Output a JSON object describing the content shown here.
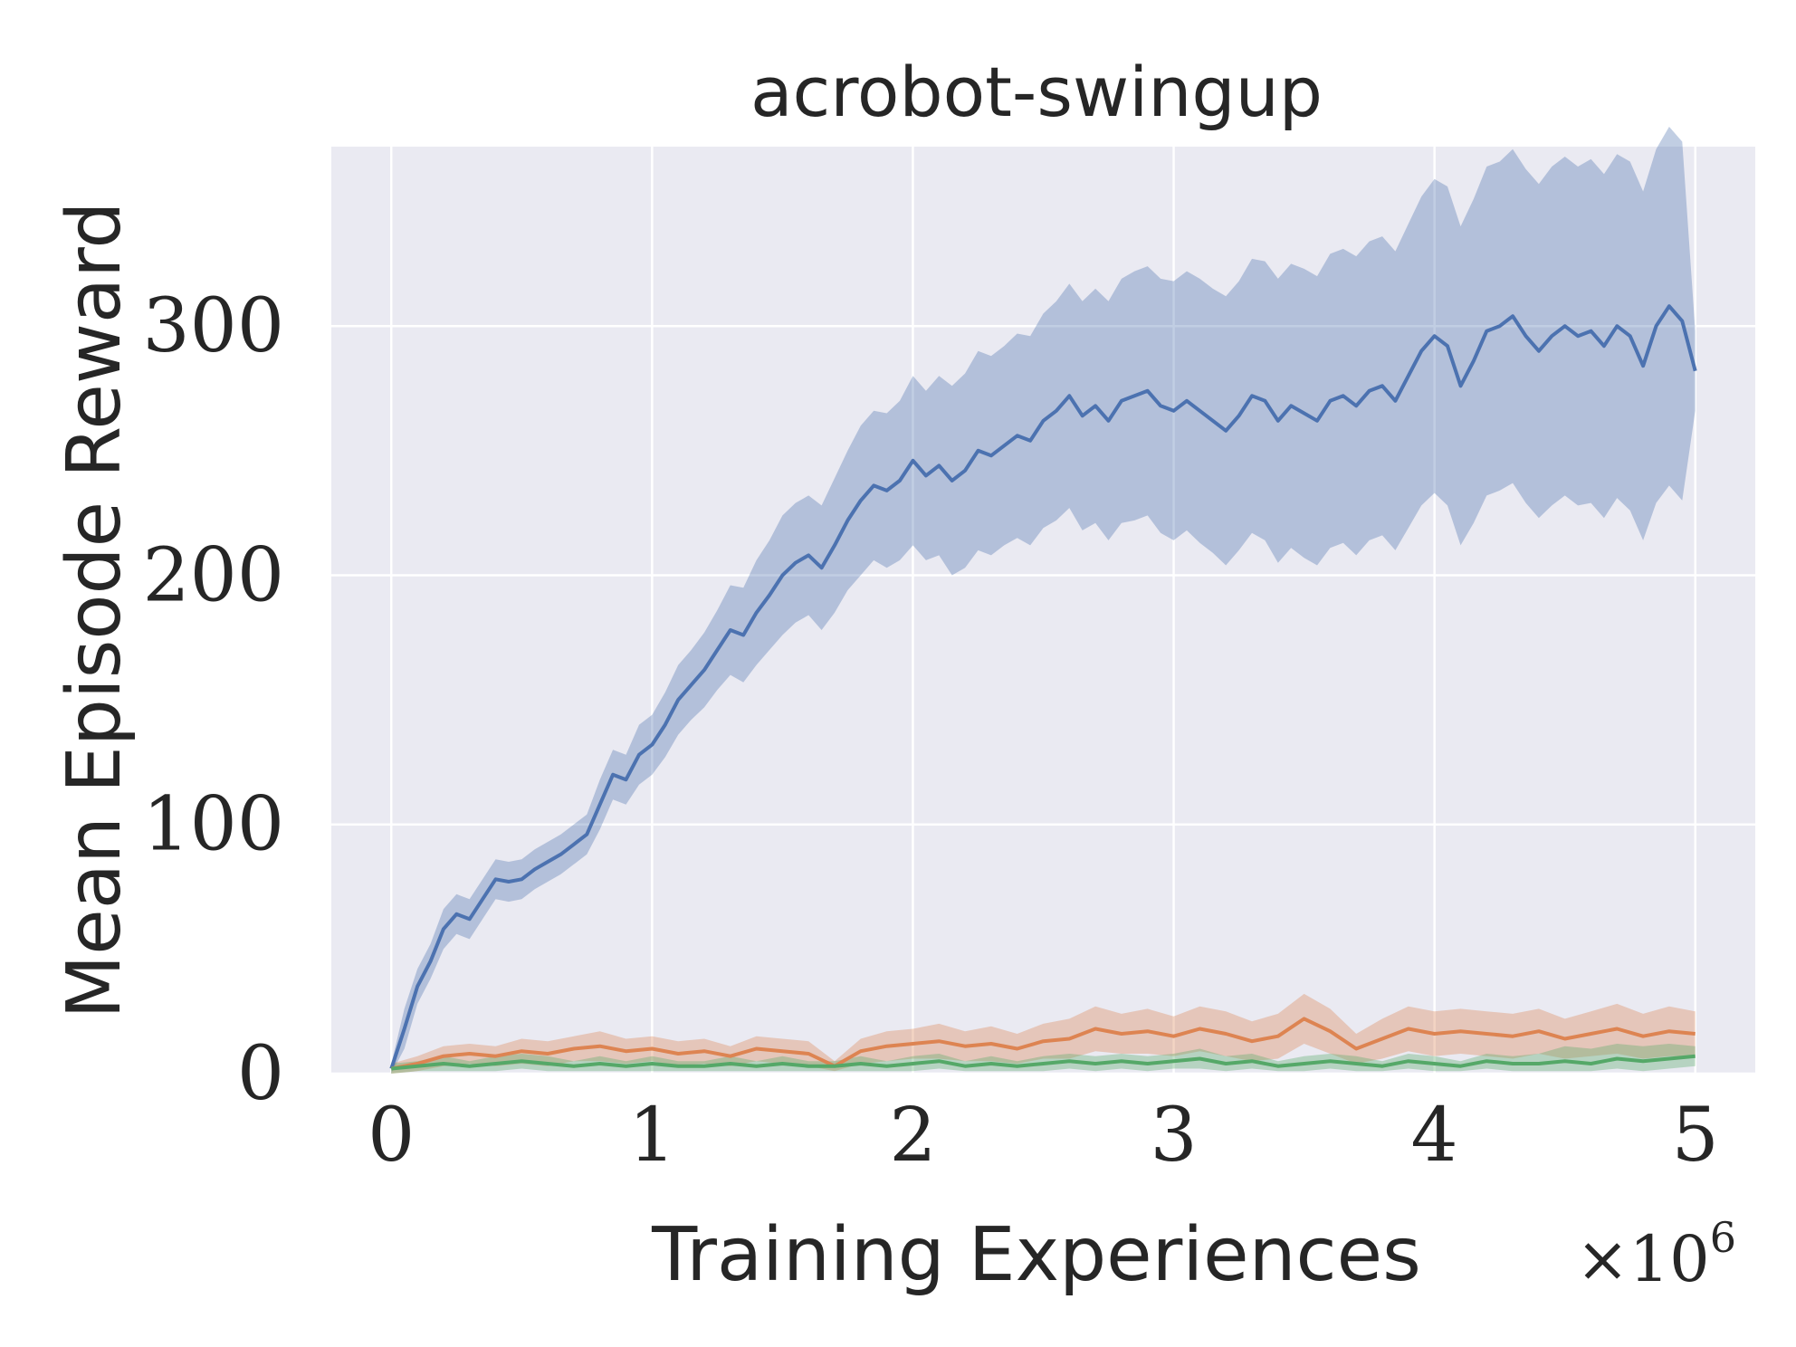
{
  "chart_data": {
    "type": "line",
    "title": "acrobot-swingup",
    "xlabel": "Training Experiences",
    "ylabel": "Mean Episode Reward",
    "x_offset_label": {
      "base": "×10",
      "exponent": "6"
    },
    "xlim": [
      -0.23,
      5.23
    ],
    "ylim": [
      0,
      372
    ],
    "x_ticks": [
      0,
      1,
      2,
      3,
      4,
      5
    ],
    "y_ticks": [
      0,
      100,
      200,
      300
    ],
    "x_tick_labels": [
      "0",
      "1",
      "2",
      "3",
      "4",
      "5"
    ],
    "y_tick_labels": [
      "0",
      "100",
      "200",
      "300"
    ],
    "grid": true,
    "background": "#EAEAF2",
    "series": [
      {
        "color": "#4C72B0",
        "x": [
          0,
          0.05,
          0.1,
          0.15,
          0.2,
          0.25,
          0.3,
          0.35,
          0.4,
          0.45,
          0.5,
          0.55,
          0.6,
          0.65,
          0.7,
          0.75,
          0.8,
          0.85,
          0.9,
          0.95,
          1.0,
          1.05,
          1.1,
          1.15,
          1.2,
          1.25,
          1.3,
          1.35,
          1.4,
          1.45,
          1.5,
          1.55,
          1.6,
          1.65,
          1.7,
          1.75,
          1.8,
          1.85,
          1.9,
          1.95,
          2.0,
          2.05,
          2.1,
          2.15,
          2.2,
          2.25,
          2.3,
          2.35,
          2.4,
          2.45,
          2.5,
          2.55,
          2.6,
          2.65,
          2.7,
          2.75,
          2.8,
          2.85,
          2.9,
          2.95,
          3.0,
          3.05,
          3.1,
          3.15,
          3.2,
          3.25,
          3.3,
          3.35,
          3.4,
          3.45,
          3.5,
          3.55,
          3.6,
          3.65,
          3.7,
          3.75,
          3.8,
          3.85,
          3.9,
          3.95,
          4.0,
          4.05,
          4.1,
          4.15,
          4.2,
          4.25,
          4.3,
          4.35,
          4.4,
          4.45,
          4.5,
          4.55,
          4.6,
          4.65,
          4.7,
          4.75,
          4.8,
          4.85,
          4.9,
          4.95,
          5.0
        ],
        "mean": [
          2,
          18,
          35,
          45,
          58,
          64,
          62,
          70,
          78,
          77,
          78,
          82,
          85,
          88,
          92,
          96,
          108,
          120,
          118,
          128,
          132,
          140,
          150,
          156,
          162,
          170,
          178,
          176,
          185,
          192,
          200,
          205,
          208,
          203,
          212,
          222,
          230,
          236,
          234,
          238,
          246,
          240,
          244,
          238,
          242,
          250,
          248,
          252,
          256,
          254,
          262,
          266,
          272,
          264,
          268,
          262,
          270,
          272,
          274,
          268,
          266,
          270,
          266,
          262,
          258,
          264,
          272,
          270,
          262,
          268,
          265,
          262,
          270,
          272,
          268,
          274,
          276,
          270,
          280,
          290,
          296,
          292,
          276,
          286,
          298,
          300,
          304,
          296,
          290,
          296,
          300,
          296,
          298,
          292,
          300,
          296,
          284,
          300,
          308,
          302,
          282
        ],
        "lower": [
          0,
          10,
          28,
          38,
          50,
          56,
          54,
          62,
          70,
          69,
          70,
          74,
          77,
          80,
          84,
          88,
          98,
          110,
          108,
          116,
          120,
          127,
          136,
          142,
          147,
          154,
          160,
          157,
          164,
          170,
          176,
          181,
          184,
          178,
          185,
          194,
          200,
          206,
          203,
          206,
          212,
          206,
          208,
          200,
          203,
          210,
          208,
          212,
          215,
          212,
          219,
          222,
          227,
          218,
          221,
          214,
          221,
          222,
          224,
          217,
          214,
          218,
          213,
          209,
          204,
          210,
          217,
          214,
          205,
          211,
          207,
          204,
          211,
          213,
          208,
          214,
          216,
          210,
          219,
          228,
          233,
          228,
          212,
          221,
          232,
          234,
          237,
          229,
          223,
          228,
          232,
          228,
          229,
          223,
          231,
          226,
          214,
          229,
          236,
          230,
          266
        ],
        "upper": [
          4,
          26,
          42,
          52,
          66,
          72,
          70,
          78,
          86,
          85,
          86,
          90,
          93,
          96,
          100,
          104,
          118,
          130,
          128,
          140,
          144,
          153,
          164,
          170,
          177,
          186,
          196,
          195,
          206,
          214,
          224,
          229,
          232,
          228,
          239,
          250,
          260,
          266,
          265,
          270,
          280,
          274,
          280,
          276,
          281,
          290,
          288,
          292,
          297,
          296,
          305,
          310,
          317,
          310,
          315,
          310,
          319,
          322,
          324,
          319,
          318,
          322,
          319,
          315,
          312,
          318,
          327,
          326,
          319,
          325,
          323,
          320,
          329,
          331,
          328,
          334,
          336,
          330,
          341,
          352,
          359,
          356,
          340,
          351,
          364,
          366,
          371,
          363,
          357,
          364,
          368,
          364,
          367,
          361,
          369,
          366,
          354,
          371,
          380,
          374,
          298
        ]
      },
      {
        "color": "#DD8452",
        "x": [
          0,
          0.1,
          0.2,
          0.3,
          0.4,
          0.5,
          0.6,
          0.7,
          0.8,
          0.9,
          1.0,
          1.1,
          1.2,
          1.3,
          1.4,
          1.5,
          1.6,
          1.7,
          1.8,
          1.9,
          2.0,
          2.1,
          2.2,
          2.3,
          2.4,
          2.5,
          2.6,
          2.7,
          2.8,
          2.9,
          3.0,
          3.1,
          3.2,
          3.3,
          3.4,
          3.5,
          3.6,
          3.7,
          3.8,
          3.9,
          4.0,
          4.1,
          4.2,
          4.3,
          4.4,
          4.5,
          4.6,
          4.7,
          4.8,
          4.9,
          5.0
        ],
        "mean": [
          2,
          4,
          7,
          8,
          7,
          9,
          8,
          10,
          11,
          9,
          10,
          8,
          9,
          7,
          10,
          9,
          8,
          3,
          9,
          11,
          12,
          13,
          11,
          12,
          10,
          13,
          14,
          18,
          16,
          17,
          15,
          18,
          16,
          13,
          15,
          22,
          17,
          10,
          14,
          18,
          16,
          17,
          16,
          15,
          17,
          14,
          16,
          18,
          15,
          17,
          16
        ],
        "lower": [
          0,
          1,
          3,
          4,
          3,
          4,
          3,
          5,
          5,
          4,
          5,
          3,
          4,
          3,
          5,
          4,
          3,
          1,
          4,
          5,
          6,
          6,
          5,
          5,
          4,
          6,
          6,
          9,
          8,
          8,
          7,
          9,
          7,
          5,
          6,
          12,
          8,
          4,
          6,
          9,
          7,
          8,
          7,
          6,
          8,
          6,
          7,
          8,
          6,
          7,
          7
        ],
        "upper": [
          4,
          7,
          11,
          12,
          11,
          14,
          13,
          15,
          17,
          14,
          15,
          13,
          14,
          11,
          15,
          14,
          13,
          5,
          14,
          17,
          18,
          20,
          17,
          19,
          16,
          20,
          22,
          27,
          24,
          26,
          23,
          27,
          25,
          21,
          24,
          32,
          26,
          16,
          22,
          27,
          25,
          26,
          25,
          24,
          26,
          22,
          25,
          28,
          24,
          27,
          25
        ]
      },
      {
        "color": "#55A868",
        "x": [
          0,
          0.1,
          0.2,
          0.3,
          0.4,
          0.5,
          0.6,
          0.7,
          0.8,
          0.9,
          1.0,
          1.1,
          1.2,
          1.3,
          1.4,
          1.5,
          1.6,
          1.7,
          1.8,
          1.9,
          2.0,
          2.1,
          2.2,
          2.3,
          2.4,
          2.5,
          2.6,
          2.7,
          2.8,
          2.9,
          3.0,
          3.1,
          3.2,
          3.3,
          3.4,
          3.5,
          3.6,
          3.7,
          3.8,
          3.9,
          4.0,
          4.1,
          4.2,
          4.3,
          4.4,
          4.5,
          4.6,
          4.7,
          4.8,
          4.9,
          5.0
        ],
        "mean": [
          2,
          3,
          4,
          3,
          4,
          5,
          4,
          3,
          4,
          3,
          4,
          3,
          3,
          4,
          3,
          4,
          3,
          3,
          4,
          3,
          4,
          5,
          3,
          4,
          3,
          4,
          5,
          4,
          5,
          4,
          5,
          6,
          4,
          5,
          3,
          4,
          5,
          4,
          3,
          5,
          4,
          3,
          5,
          4,
          4,
          5,
          4,
          6,
          5,
          6,
          7
        ],
        "lower": [
          0,
          1,
          1,
          1,
          1,
          2,
          1,
          1,
          1,
          1,
          1,
          1,
          1,
          1,
          1,
          1,
          1,
          1,
          1,
          1,
          1,
          2,
          1,
          1,
          1,
          1,
          2,
          1,
          2,
          1,
          2,
          2,
          1,
          2,
          1,
          1,
          2,
          1,
          1,
          2,
          1,
          1,
          2,
          1,
          1,
          1,
          1,
          2,
          1,
          2,
          3
        ],
        "upper": [
          4,
          5,
          7,
          5,
          7,
          8,
          7,
          5,
          7,
          5,
          7,
          5,
          5,
          7,
          5,
          7,
          5,
          5,
          7,
          5,
          7,
          8,
          5,
          7,
          5,
          7,
          8,
          7,
          8,
          7,
          8,
          10,
          7,
          8,
          5,
          7,
          8,
          7,
          5,
          8,
          7,
          5,
          8,
          7,
          8,
          11,
          10,
          12,
          11,
          12,
          11
        ]
      }
    ]
  }
}
